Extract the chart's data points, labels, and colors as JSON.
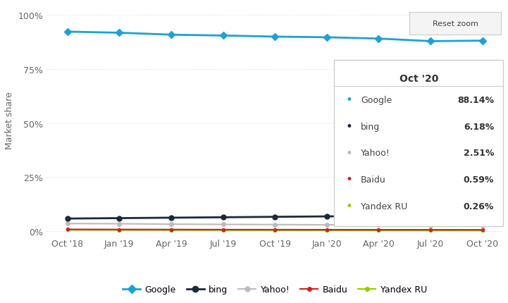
{
  "x_labels": [
    "Oct '18",
    "Jan '19",
    "Apr '19",
    "Jul '19",
    "Oct '19",
    "Jan '20",
    "Apr '20",
    "Jul '20",
    "Oct '20"
  ],
  "x_positions": [
    0,
    1,
    2,
    3,
    4,
    5,
    6,
    7,
    8
  ],
  "series": {
    "Google": {
      "values": [
        92.3,
        91.8,
        90.9,
        90.5,
        90.0,
        89.7,
        89.1,
        87.9,
        88.14
      ],
      "color": "#1da1d6",
      "marker": "D",
      "linewidth": 2.0,
      "markersize": 5,
      "zorder": 5
    },
    "bing": {
      "values": [
        5.8,
        6.0,
        6.2,
        6.4,
        6.6,
        6.8,
        7.0,
        7.2,
        6.18
      ],
      "color": "#1b2a3b",
      "marker": "o",
      "linewidth": 2.0,
      "markersize": 5,
      "zorder": 4
    },
    "Yahoo!": {
      "values": [
        3.5,
        3.4,
        3.2,
        3.1,
        3.0,
        2.9,
        2.8,
        2.7,
        2.51
      ],
      "color": "#bbbbbb",
      "marker": "o",
      "linewidth": 1.5,
      "markersize": 4,
      "zorder": 3
    },
    "Baidu": {
      "values": [
        0.8,
        0.75,
        0.72,
        0.68,
        0.66,
        0.64,
        0.62,
        0.6,
        0.59
      ],
      "color": "#cc2222",
      "marker": "o",
      "linewidth": 1.5,
      "markersize": 3,
      "zorder": 2
    },
    "Yandex RU": {
      "values": [
        0.5,
        0.46,
        0.42,
        0.39,
        0.36,
        0.33,
        0.31,
        0.28,
        0.26
      ],
      "color": "#99cc00",
      "marker": "o",
      "linewidth": 1.5,
      "markersize": 3,
      "zorder": 1
    }
  },
  "yticks": [
    0,
    25,
    50,
    75,
    100
  ],
  "ytick_labels": [
    "0%",
    "25%",
    "50%",
    "75%",
    "100%"
  ],
  "ylabel": "Market share",
  "tooltip_title": "Oct '20",
  "tooltip_entries": [
    {
      "label": "Google",
      "value": "88.14%",
      "color": "#1da1d6"
    },
    {
      "label": "bing",
      "value": "6.18%",
      "color": "#1b2a3b"
    },
    {
      "label": "Yahoo!",
      "value": "2.51%",
      "color": "#bbbbbb"
    },
    {
      "label": "Baidu",
      "value": "0.59%",
      "color": "#cc2222"
    },
    {
      "label": "Yandex RU",
      "value": "0.26%",
      "color": "#99cc00"
    }
  ],
  "reset_zoom_label": "Reset zoom",
  "background_color": "#ffffff",
  "grid_color": "#dddddd",
  "legend_order": [
    "Google",
    "bing",
    "Yahoo!",
    "Baidu",
    "Yandex RU"
  ]
}
